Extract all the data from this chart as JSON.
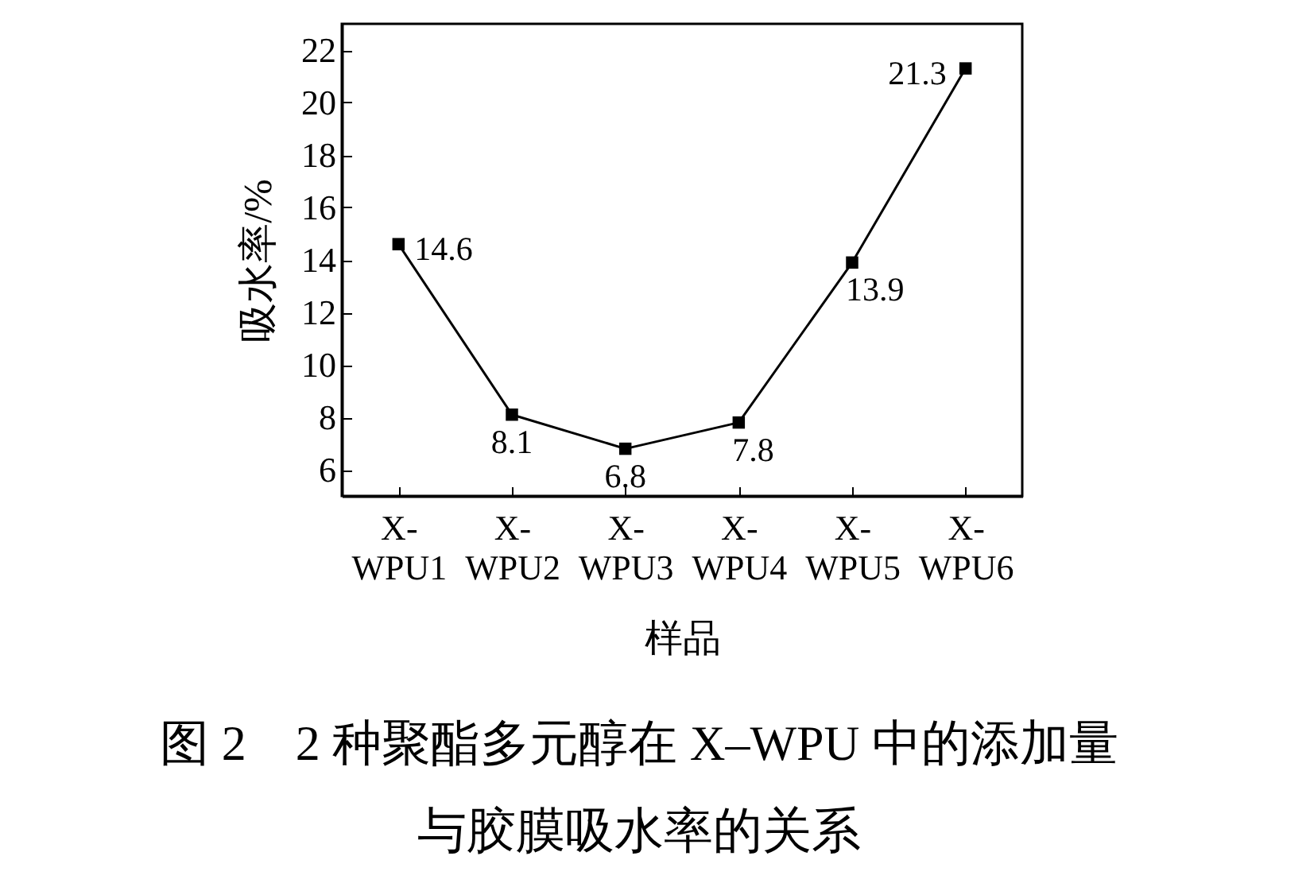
{
  "chart_data": {
    "type": "line",
    "title": "图 2　2 种聚酯多元醇在 X–WPU 中的添加量与胶膜吸水率的关系",
    "xlabel": "样品",
    "ylabel": "吸水率/%",
    "categories": [
      "X-WPU1",
      "X-WPU2",
      "X-WPU3",
      "X-WPU4",
      "X-WPU5",
      "X-WPU6"
    ],
    "series": [
      {
        "color": "#000000",
        "values": [
          14.6,
          8.1,
          6.8,
          7.8,
          13.9,
          21.3
        ]
      }
    ],
    "ylim": [
      5,
      23
    ],
    "yticks": [
      6,
      8,
      10,
      12,
      14,
      16,
      18,
      20,
      22
    ],
    "grid": false,
    "marker": "square",
    "line_style": "solid",
    "data_labels": true
  }
}
